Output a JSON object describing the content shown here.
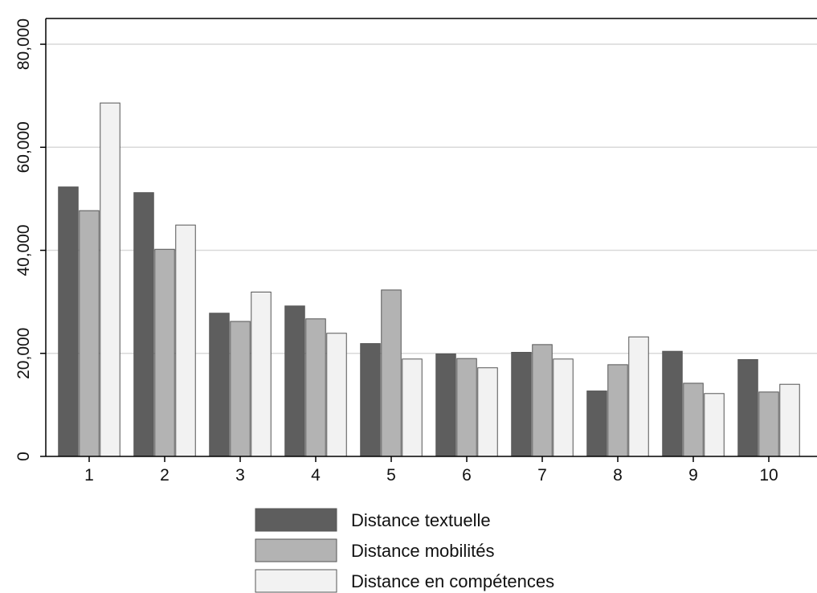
{
  "chart_data": {
    "type": "bar",
    "title": "",
    "xlabel": "",
    "ylabel": "",
    "categories": [
      "1",
      "2",
      "3",
      "4",
      "5",
      "6",
      "7",
      "8",
      "9",
      "10"
    ],
    "series": [
      {
        "name": "Distance textuelle",
        "color": "#5e5e5e",
        "values": [
          52300,
          51200,
          27800,
          29200,
          21900,
          19900,
          20200,
          12700,
          20400,
          18800
        ]
      },
      {
        "name": "Distance mobilités",
        "color": "#b3b3b3",
        "values": [
          47700,
          40200,
          26200,
          26700,
          32300,
          19000,
          21700,
          17800,
          14200,
          12500
        ]
      },
      {
        "name": "Distance en compétences",
        "color": "#f2f2f2",
        "values": [
          68600,
          44900,
          31900,
          23900,
          18900,
          17200,
          18900,
          23200,
          12200,
          14000
        ]
      }
    ],
    "ylim": [
      0,
      85000
    ],
    "yticks": [
      0,
      20000,
      40000,
      60000,
      80000
    ],
    "ytick_labels": [
      "0",
      "20,000",
      "40,000",
      "60,000",
      "80,000"
    ],
    "grid": "horizontal",
    "legend_position": "bottom"
  }
}
